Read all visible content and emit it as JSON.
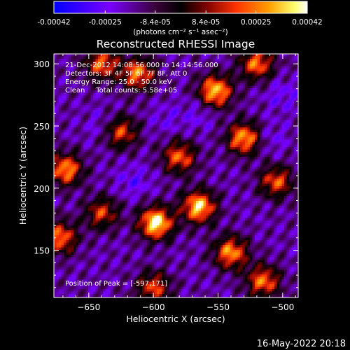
{
  "chart_data": {
    "type": "heatmap",
    "title": "Reconstructed RHESSI Image",
    "xlabel": "Heliocentric X (arcsec)",
    "ylabel": "Heliocentric Y (arcsec)",
    "xlim": [
      -677,
      -488
    ],
    "ylim": [
      112,
      308
    ],
    "xticks": [
      -650,
      -600,
      -550,
      -500
    ],
    "yticks": [
      150,
      200,
      250,
      300
    ],
    "colorbar": {
      "range": [
        -0.00042,
        0.00042
      ],
      "tick_values": [
        -0.00042,
        -0.00025,
        -8.4e-05,
        8.4e-05,
        0.00025,
        0.00042
      ],
      "tick_labels": [
        "-0.00042",
        "-0.00025",
        "-8.4e-05",
        "8.4e-05",
        "0.00025",
        "0.00042"
      ],
      "unit_label": "(photons cm⁻² s⁻¹ asec⁻²)",
      "colors": [
        "#0000ff",
        "#7a00ff",
        "#3a003a",
        "#000000",
        "#7a0000",
        "#ff3300",
        "#ffa000",
        "#ffff70",
        "#ffffff"
      ]
    },
    "annotations": [
      "21-Dec-2012 14:08:56.000 to 14:14:56.000",
      "Detectors: 3F 4F 5F 6F 7F 8F, Att 0",
      "Energy Range: 25.0 - 50.0 keV",
      "Clean     Total counts: 5.58e+05"
    ],
    "peak_text": "Position of Peak = [-597,171]",
    "peak": [
      -597,
      171
    ],
    "hotspots": [
      {
        "x": -598,
        "y": 172,
        "intensity": 0.00042
      },
      {
        "x": -565,
        "y": 185,
        "intensity": 0.00036
      },
      {
        "x": -552,
        "y": 278,
        "intensity": 0.00034
      },
      {
        "x": -530,
        "y": 240,
        "intensity": 0.0003
      },
      {
        "x": -668,
        "y": 215,
        "intensity": 0.00028
      },
      {
        "x": -672,
        "y": 160,
        "intensity": 0.00024
      },
      {
        "x": -612,
        "y": 292,
        "intensity": 0.00026
      },
      {
        "x": -640,
        "y": 300,
        "intensity": 0.00022
      },
      {
        "x": -540,
        "y": 148,
        "intensity": 0.00028
      },
      {
        "x": -515,
        "y": 125,
        "intensity": 0.00024
      },
      {
        "x": -505,
        "y": 205,
        "intensity": 0.0002
      },
      {
        "x": -625,
        "y": 245,
        "intensity": 0.00018
      },
      {
        "x": -580,
        "y": 225,
        "intensity": 0.00022
      },
      {
        "x": -640,
        "y": 180,
        "intensity": 0.00016
      },
      {
        "x": -600,
        "y": 120,
        "intensity": 0.00018
      },
      {
        "x": -520,
        "y": 300,
        "intensity": 0.00024
      }
    ],
    "coldspots": [
      {
        "x": -615,
        "y": 205,
        "intensity": -0.00025
      },
      {
        "x": -500,
        "y": 275,
        "intensity": -0.00022
      },
      {
        "x": -565,
        "y": 260,
        "intensity": -0.0002
      },
      {
        "x": -640,
        "y": 250,
        "intensity": -0.00018
      },
      {
        "x": -510,
        "y": 240,
        "intensity": -0.0002
      },
      {
        "x": -590,
        "y": 255,
        "intensity": -0.00016
      }
    ]
  },
  "footer": {
    "datestamp": "16-May-2022 20:18"
  }
}
